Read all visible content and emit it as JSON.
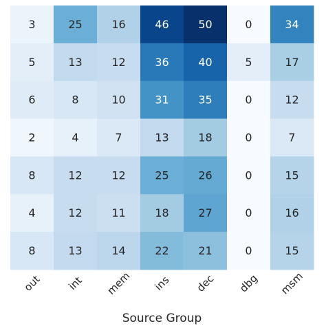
{
  "chart_data": {
    "type": "heatmap",
    "title": "",
    "xlabel": "Source Group",
    "ylabel": "",
    "x_categories": [
      "out",
      "int",
      "mem",
      "ins",
      "dec",
      "dbg",
      "msm"
    ],
    "y_categories": [],
    "values": [
      [
        3,
        25,
        16,
        46,
        50,
        0,
        34
      ],
      [
        5,
        13,
        12,
        36,
        40,
        5,
        17
      ],
      [
        6,
        8,
        10,
        31,
        35,
        0,
        12
      ],
      [
        2,
        4,
        7,
        13,
        18,
        0,
        7
      ],
      [
        8,
        12,
        12,
        25,
        26,
        0,
        15
      ],
      [
        4,
        12,
        11,
        18,
        27,
        0,
        16
      ],
      [
        8,
        13,
        14,
        22,
        21,
        0,
        15
      ]
    ],
    "value_range": [
      0,
      50
    ],
    "colormap": "Blues",
    "annotations": true,
    "colorbar": false,
    "grid": false
  }
}
